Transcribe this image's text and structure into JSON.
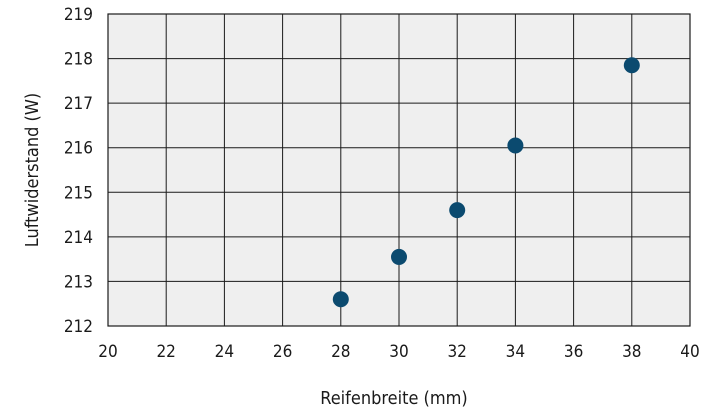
{
  "chart_data": {
    "type": "scatter",
    "xlabel": "Reifenbreite (mm)",
    "ylabel": "Luftwiderstand (W)",
    "xlim": [
      20,
      40
    ],
    "ylim": [
      212,
      219
    ],
    "xticks": [
      "20",
      "22",
      "24",
      "26",
      "28",
      "30",
      "32",
      "34",
      "36",
      "38",
      "40"
    ],
    "yticks": [
      "212",
      "213",
      "214",
      "215",
      "216",
      "217",
      "218",
      "219"
    ],
    "grid": true,
    "marker_color": "#0b4a6f",
    "background_color": "#efefef",
    "points": [
      {
        "x": 28,
        "y": 212.6
      },
      {
        "x": 30,
        "y": 213.55
      },
      {
        "x": 32,
        "y": 214.6
      },
      {
        "x": 34,
        "y": 216.05
      },
      {
        "x": 38,
        "y": 217.85
      }
    ]
  }
}
